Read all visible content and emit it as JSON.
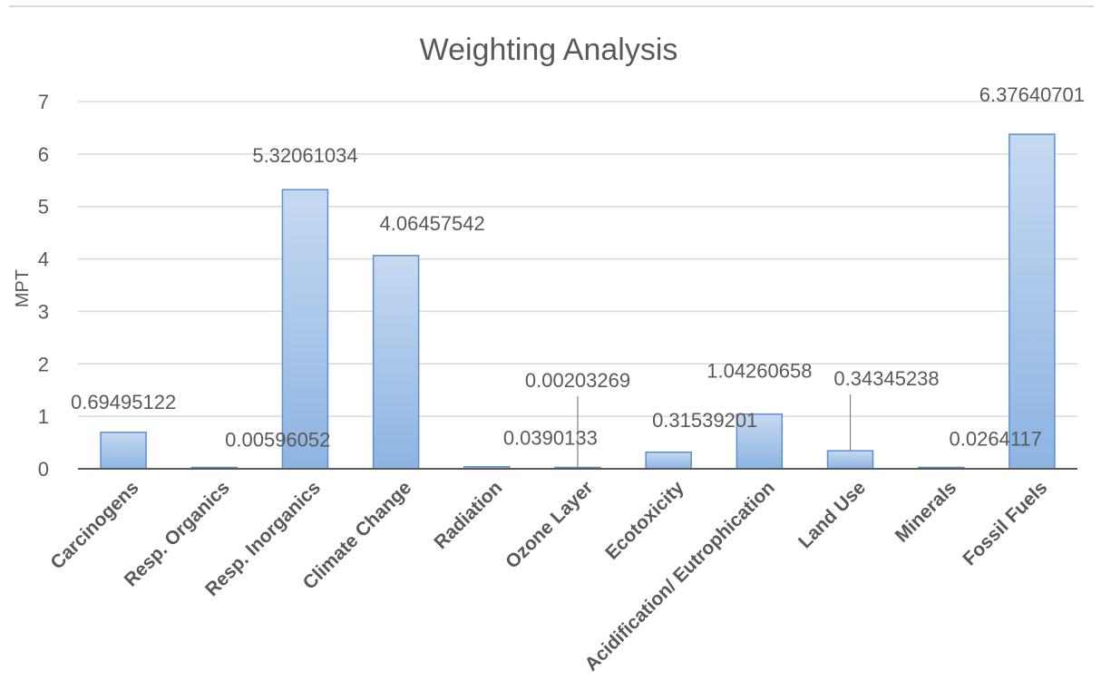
{
  "colors": {
    "bar_top": "#c6d9f1",
    "bar_bottom": "#8db4e2",
    "bar_stroke": "#5b8fd0",
    "text": "#595959",
    "grid": "#d9d9d9"
  },
  "chart_data": {
    "type": "bar",
    "title": "Weighting Analysis",
    "xlabel": "",
    "ylabel": "MPT",
    "ylim": [
      0,
      7
    ],
    "yticks": [
      "0",
      "1",
      "2",
      "3",
      "4",
      "5",
      "6",
      "7"
    ],
    "grid": true,
    "legend": "none",
    "categories": [
      "Carcinogens",
      "Resp. Organics",
      "Resp. Inorganics",
      "Climate Change",
      "Radiation",
      "Ozone Layer",
      "Ecotoxicity",
      "Acidification/ Eutrophication",
      "Land Use",
      "Minerals",
      "Fossil Fuels"
    ],
    "values": [
      0.69495122,
      0.00596052,
      5.32061034,
      4.06457542,
      0.0390133,
      0.00203269,
      0.31539201,
      1.04260658,
      0.34345238,
      0.0264117,
      6.37640701
    ],
    "data_labels": [
      "0.69495122",
      "0.00596052",
      "5.32061034",
      "4.06457542",
      "0.0390133",
      "0.00203269",
      "0.31539201",
      "1.04260658",
      "0.34345238",
      "0.0264117",
      "6.37640701"
    ]
  }
}
